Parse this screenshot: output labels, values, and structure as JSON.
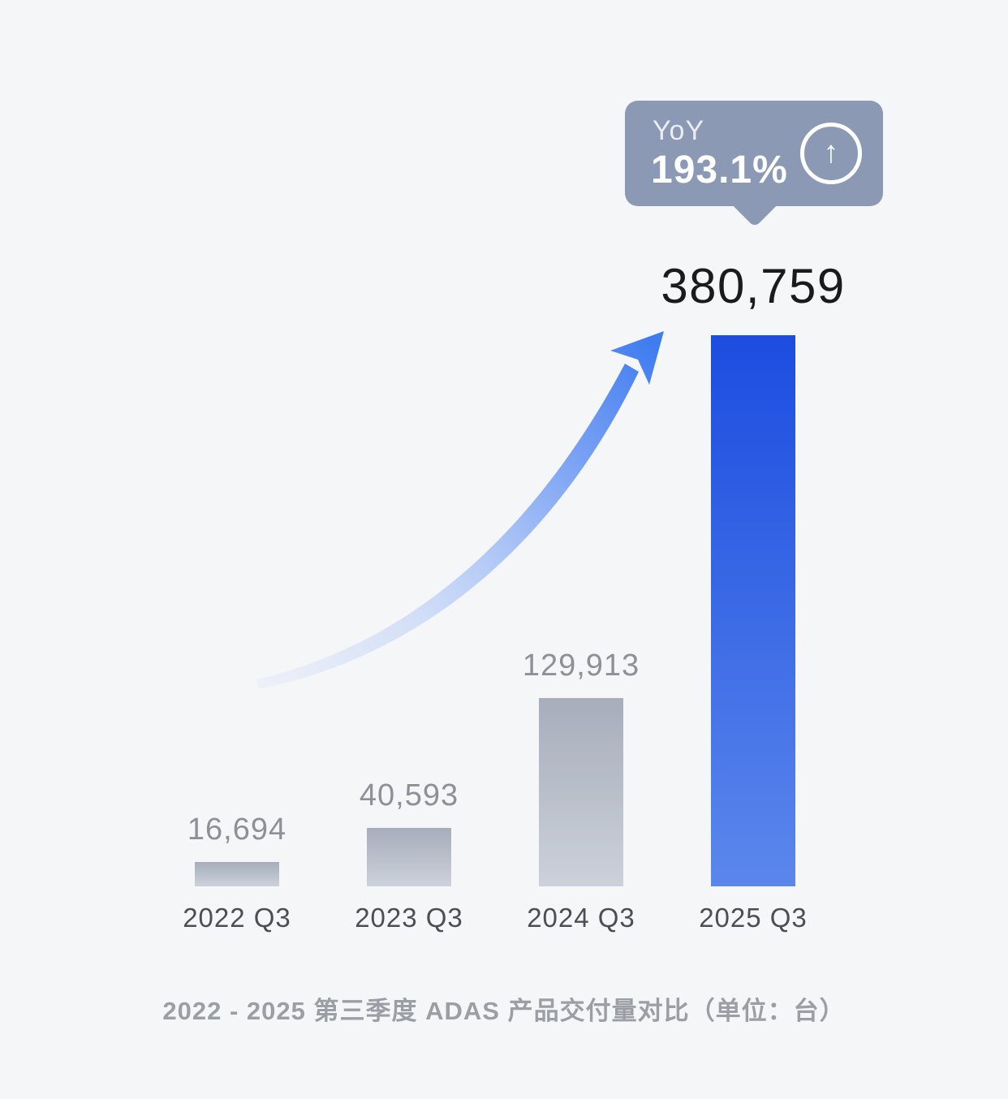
{
  "page": {
    "background_color": "#f5f6f8"
  },
  "badge": {
    "label": "YoY",
    "value": "193.1%",
    "icon": "arrow-up-circle-icon",
    "arrow_glyph": "↑",
    "background_color": "#8b99b4",
    "text_color": "#ffffff"
  },
  "chart_data": {
    "type": "bar",
    "title": "2022 - 2025 第三季度 ADAS 产品交付量对比（单位：台）",
    "categories": [
      "2022 Q3",
      "2023 Q3",
      "2024 Q3",
      "2025 Q3"
    ],
    "values": [
      16694,
      40593,
      129913,
      380759
    ],
    "value_labels": [
      "16,694",
      "40,593",
      "129,913",
      "380,759"
    ],
    "series_name": "ADAS 产品交付量",
    "unit": "台",
    "ylim": [
      0,
      380759
    ],
    "grid": false,
    "legend": false,
    "highlight_index": 3,
    "yoy_annotation": {
      "label": "YoY",
      "value": "193.1%",
      "applies_to": "2025 Q3"
    },
    "annotations": [
      "upward curved growth arrow from 2022 bar toward 2025 bar"
    ],
    "colors": {
      "bar_default_top": "#a7adba",
      "bar_default_bottom": "#ccd1da",
      "bar_highlight_top": "#1c4de0",
      "bar_highlight_bottom": "#5b87ec",
      "value_label": "#8d9096",
      "highlight_value_label": "#1a1b1e",
      "category_label": "#4b4e54",
      "caption": "#9b9ea5",
      "badge": "#8b99b4",
      "growth_arrow": "#3f7cf0"
    }
  }
}
